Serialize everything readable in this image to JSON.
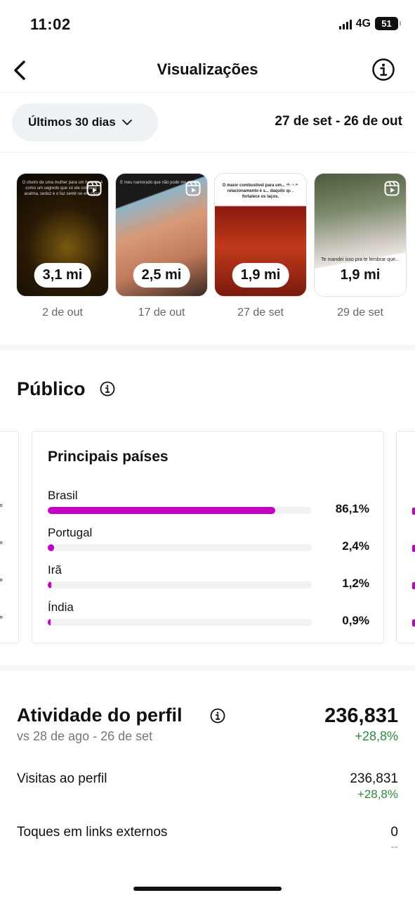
{
  "status": {
    "time": "11:02",
    "network": "4G",
    "battery": "51"
  },
  "header": {
    "title": "Visualizações"
  },
  "date_filter": {
    "range_label": "Últimos 30 dias",
    "date_range": "27 de set - 26 de out"
  },
  "reels": [
    {
      "views": "3,1 mi",
      "date": "2 de out",
      "caption": "O cheiro de uma mulher para um homem é como um segredo que só ele conhece - acalma, seduz e o faz sentir-se em casa."
    },
    {
      "views": "2,5 mi",
      "date": "17 de out",
      "caption": "E meu namorado que não pode me ver de..."
    },
    {
      "views": "1,9 mi",
      "date": "27 de set",
      "caption": "O maior combustível para um... de um relacionamento é s... daquilo que fortalece os laços."
    },
    {
      "views": "1,9 mi",
      "date": "29 de set",
      "caption": "Te mandei isso pra te lembrar que..."
    }
  ],
  "audience": {
    "title": "Público",
    "card_title": "Principais países",
    "countries": [
      {
        "name": "Brasil",
        "pct": "86,1%",
        "fraction": 0.861
      },
      {
        "name": "Portugal",
        "pct": "2,4%",
        "fraction": 0.024
      },
      {
        "name": "Irã",
        "pct": "1,2%",
        "fraction": 0.012
      },
      {
        "name": "Índia",
        "pct": "0,9%",
        "fraction": 0.009
      }
    ]
  },
  "activity": {
    "title": "Atividade do perfil",
    "comparison": "vs 28 de ago - 26 de set",
    "total": "236,831",
    "delta": "+28,8%",
    "rows": [
      {
        "label": "Visitas ao perfil",
        "value": "236,831",
        "delta": "+28,8%"
      },
      {
        "label": "Toques em links externos",
        "value": "0",
        "delta": "--"
      }
    ]
  },
  "colors": {
    "accent_bar": "#c400c4",
    "positive": "#2e8b3e",
    "track": "#f1f2f4"
  }
}
